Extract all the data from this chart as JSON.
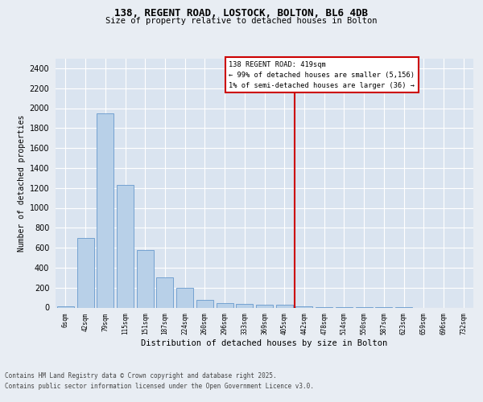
{
  "title1": "138, REGENT ROAD, LOSTOCK, BOLTON, BL6 4DB",
  "title2": "Size of property relative to detached houses in Bolton",
  "xlabel": "Distribution of detached houses by size in Bolton",
  "ylabel": "Number of detached properties",
  "bar_labels": [
    "6sqm",
    "42sqm",
    "79sqm",
    "115sqm",
    "151sqm",
    "187sqm",
    "224sqm",
    "260sqm",
    "296sqm",
    "333sqm",
    "369sqm",
    "405sqm",
    "442sqm",
    "478sqm",
    "514sqm",
    "550sqm",
    "587sqm",
    "623sqm",
    "659sqm",
    "696sqm",
    "732sqm"
  ],
  "bar_values": [
    15,
    700,
    1950,
    1230,
    575,
    305,
    195,
    75,
    45,
    35,
    30,
    30,
    10,
    5,
    5,
    2,
    2,
    2,
    0,
    0,
    0
  ],
  "bar_color": "#b8d0e8",
  "bar_edgecolor": "#6699cc",
  "vline_x_index": 11.5,
  "vline_color": "#cc0000",
  "annotation_title": "138 REGENT ROAD: 419sqm",
  "annotation_line1": "← 99% of detached houses are smaller (5,156)",
  "annotation_line2": "1% of semi-detached houses are larger (36) →",
  "annotation_box_color": "#cc0000",
  "ylim": [
    0,
    2500
  ],
  "yticks": [
    0,
    200,
    400,
    600,
    800,
    1000,
    1200,
    1400,
    1600,
    1800,
    2000,
    2200,
    2400
  ],
  "footer1": "Contains HM Land Registry data © Crown copyright and database right 2025.",
  "footer2": "Contains public sector information licensed under the Open Government Licence v3.0.",
  "bg_color": "#e8edf3",
  "plot_bg_color": "#dae4f0"
}
